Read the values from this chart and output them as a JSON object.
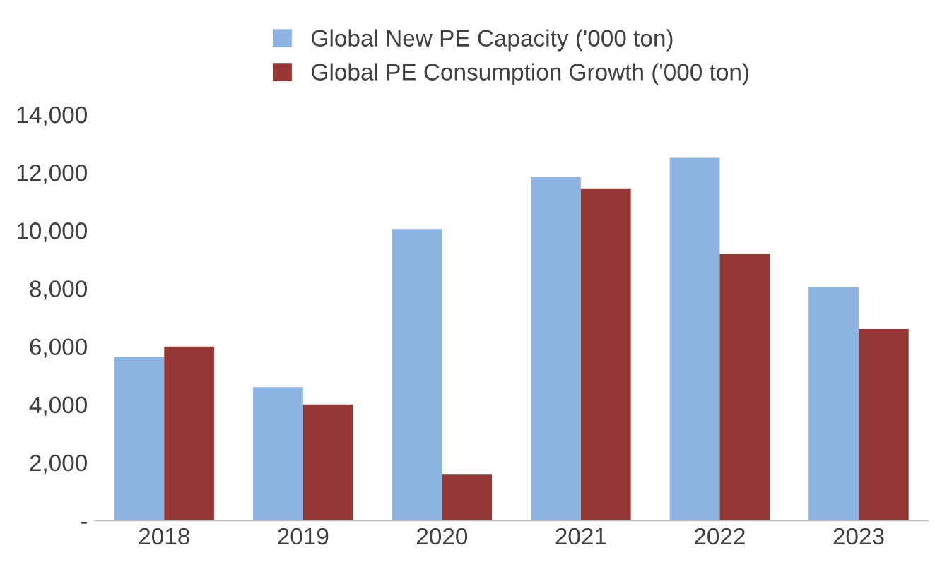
{
  "chart_data": {
    "type": "bar",
    "categories": [
      "2018",
      "2019",
      "2020",
      "2021",
      "2022",
      "2023"
    ],
    "series": [
      {
        "name": "Global New PE Capacity ('000 ton)",
        "color": "#8db3e2",
        "values": [
          5650,
          4600,
          10050,
          11850,
          12500,
          8050
        ]
      },
      {
        "name": "Global PE Consumption Growth ('000 ton)",
        "color": "#953735",
        "values": [
          6000,
          4000,
          1600,
          11450,
          9200,
          6600
        ]
      }
    ],
    "ylim": [
      0,
      14000
    ],
    "yticks": [
      {
        "value": 0,
        "label": "-"
      },
      {
        "value": 2000,
        "label": "2,000"
      },
      {
        "value": 4000,
        "label": "4,000"
      },
      {
        "value": 6000,
        "label": "6,000"
      },
      {
        "value": 8000,
        "label": "8,000"
      },
      {
        "value": 10000,
        "label": "10,000"
      },
      {
        "value": 12000,
        "label": "12,000"
      },
      {
        "value": 14000,
        "label": "14,000"
      }
    ],
    "grid": false,
    "legend": "top"
  }
}
